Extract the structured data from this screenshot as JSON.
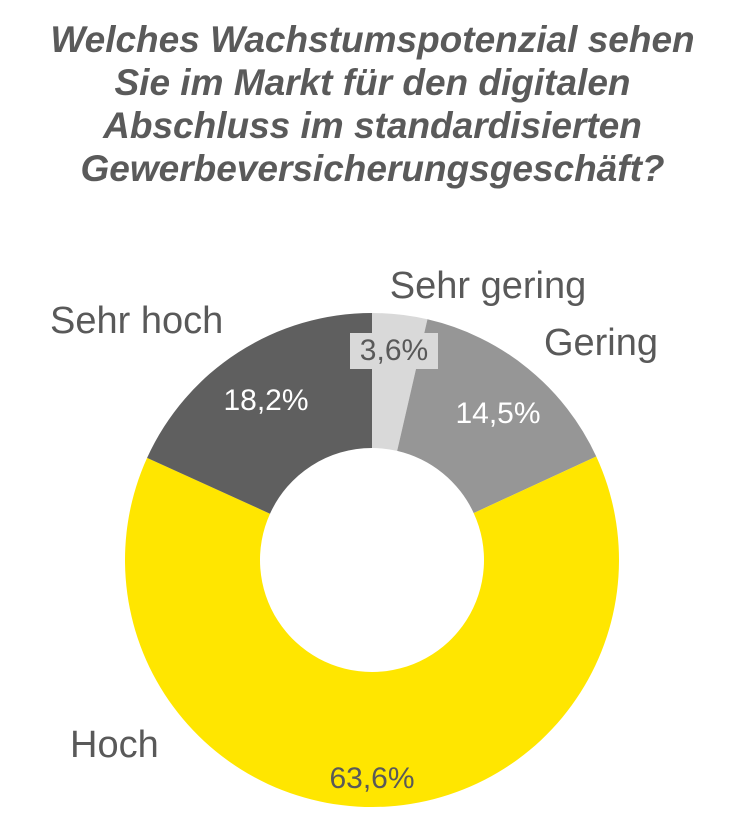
{
  "chart_data": {
    "type": "pie",
    "donut": true,
    "title_lines": [
      "Welches Wachstumspotenzial sehen",
      "Sie im Markt für den digitalen",
      "Abschluss im standardisierten",
      "Gewerbeversicherungsgeschäft?"
    ],
    "slices": [
      {
        "label": "Sehr gering",
        "value": 3.6,
        "value_label": "3,6%",
        "color": "#d9d9d9",
        "label_color": "#595959"
      },
      {
        "label": "Gering",
        "value": 14.5,
        "value_label": "14,5%",
        "color": "#969696",
        "label_color": "#ffffff"
      },
      {
        "label": "Hoch",
        "value": 63.6,
        "value_label": "63,6%",
        "color": "#ffe600",
        "label_color": "#595959"
      },
      {
        "label": "Sehr hoch",
        "value": 18.2,
        "value_label": "18,2%",
        "color": "#5f5f5f",
        "label_color": "#ffffff"
      }
    ]
  }
}
